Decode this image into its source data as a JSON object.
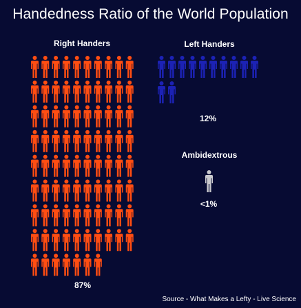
{
  "title": "Handedness Ratio of the World Population",
  "source": "Source - What Makes a Lefty - Live Science",
  "colors": {
    "background": "#070b33",
    "right": "#ff4d12",
    "left": "#1c22b5",
    "ambi": "#c9c9cd"
  },
  "chart_data": {
    "type": "pictograph",
    "title": "Handedness Ratio of the World Population",
    "unit": "1 icon per 1% of population",
    "groups": [
      {
        "key": "right",
        "label": "Right Handers",
        "value": 87,
        "value_label": "87%",
        "icons": 87,
        "color": "#ff4d12"
      },
      {
        "key": "left",
        "label": "Left Handers",
        "value": 12,
        "value_label": "12%",
        "icons": 12,
        "color": "#1c22b5"
      },
      {
        "key": "ambi",
        "label": "Ambidextrous",
        "value": 1,
        "value_label": "<1%",
        "icons": 1,
        "color": "#c9c9cd"
      }
    ]
  }
}
